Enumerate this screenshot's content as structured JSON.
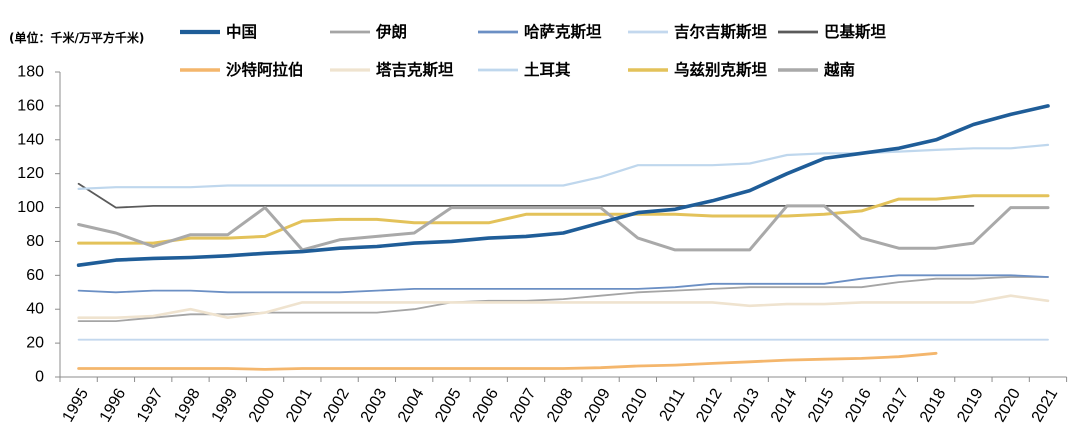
{
  "chart_data": {
    "type": "line",
    "ylabel": "(单位：千米/万平方千米)",
    "ylim": [
      0,
      180
    ],
    "yticks": [
      0,
      20,
      40,
      60,
      80,
      100,
      120,
      140,
      160,
      180
    ],
    "grid": false,
    "legend_position": "top",
    "categories": [
      "1995",
      "1996",
      "1997",
      "1998",
      "1999",
      "2000",
      "2001",
      "2002",
      "2003",
      "2004",
      "2005",
      "2006",
      "2007",
      "2008",
      "2009",
      "2010",
      "2011",
      "2012",
      "2013",
      "2014",
      "2015",
      "2016",
      "2017",
      "2018",
      "2019",
      "2020",
      "2021"
    ],
    "series": [
      {
        "name": "中国",
        "color": "#1f5d98",
        "values": [
          66,
          69,
          70,
          70.5,
          71.5,
          73,
          74,
          76,
          77,
          79,
          80,
          82,
          83,
          85,
          91,
          97,
          99,
          104,
          110,
          120,
          129,
          132,
          135,
          140,
          149,
          155,
          160
        ]
      },
      {
        "name": "伊朗",
        "color": "#a5a5a5",
        "values": [
          33,
          33,
          35,
          37,
          37,
          38,
          38,
          38,
          38,
          40,
          44,
          45,
          45,
          46,
          48,
          50,
          51,
          52,
          53,
          53,
          53,
          53,
          56,
          58,
          58,
          59,
          59
        ]
      },
      {
        "name": "哈萨克斯坦",
        "color": "#6b8fc4",
        "values": [
          51,
          50,
          51,
          51,
          50,
          50,
          50,
          50,
          51,
          52,
          52,
          52,
          52,
          52,
          52,
          52,
          53,
          55,
          55,
          55,
          55,
          58,
          60,
          60,
          60,
          60,
          59
        ]
      },
      {
        "name": "吉尔吉斯斯坦",
        "color": "#c3d8ee",
        "values": [
          22,
          22,
          22,
          22,
          22,
          22,
          22,
          22,
          22,
          22,
          22,
          22,
          22,
          22,
          22,
          22,
          22,
          22,
          22,
          22,
          22,
          22,
          22,
          22,
          22,
          22,
          22
        ]
      },
      {
        "name": "巴基斯坦",
        "color": "#5a5a5a",
        "values": [
          114,
          100,
          101,
          101,
          101,
          101,
          101,
          101,
          101,
          101,
          101,
          101,
          101,
          101,
          101,
          101,
          101,
          101,
          101,
          101,
          101,
          101,
          101,
          101,
          101,
          null,
          null
        ]
      },
      {
        "name": "沙特阿拉伯",
        "color": "#f4b66c",
        "values": [
          5,
          5,
          5,
          5,
          5,
          4.5,
          5,
          5,
          5,
          5,
          5,
          5,
          5,
          5,
          5.5,
          6.5,
          7,
          8,
          9,
          10,
          10.5,
          11,
          12,
          14,
          null,
          null,
          null
        ]
      },
      {
        "name": "塔吉克斯坦",
        "color": "#efe3cf",
        "values": [
          35,
          35,
          36,
          40,
          35,
          38,
          44,
          44,
          44,
          44,
          44,
          44,
          44,
          44,
          44,
          44,
          44,
          44,
          42,
          43,
          43,
          44,
          44,
          44,
          44,
          48,
          45
        ]
      },
      {
        "name": "土耳其",
        "color": "#bfd7ed",
        "values": [
          111,
          112,
          112,
          112,
          113,
          113,
          113,
          113,
          113,
          113,
          113,
          113,
          113,
          113,
          118,
          125,
          125,
          125,
          126,
          131,
          132,
          132,
          133,
          134,
          135,
          135,
          137
        ]
      },
      {
        "name": "乌兹别克斯坦",
        "color": "#e3c25a",
        "values": [
          79,
          79,
          79,
          82,
          82,
          83,
          92,
          93,
          93,
          91,
          91,
          91,
          96,
          96,
          96,
          96,
          96,
          95,
          95,
          95,
          96,
          98,
          105,
          105,
          107,
          107,
          107
        ]
      },
      {
        "name": "越南",
        "color": "#a9a9a9",
        "values": [
          90,
          85,
          77,
          84,
          84,
          100,
          75,
          81,
          83,
          85,
          100,
          100,
          100,
          100,
          100,
          82,
          75,
          75,
          75,
          101,
          101,
          82,
          76,
          76,
          79,
          100,
          100
        ]
      }
    ]
  }
}
